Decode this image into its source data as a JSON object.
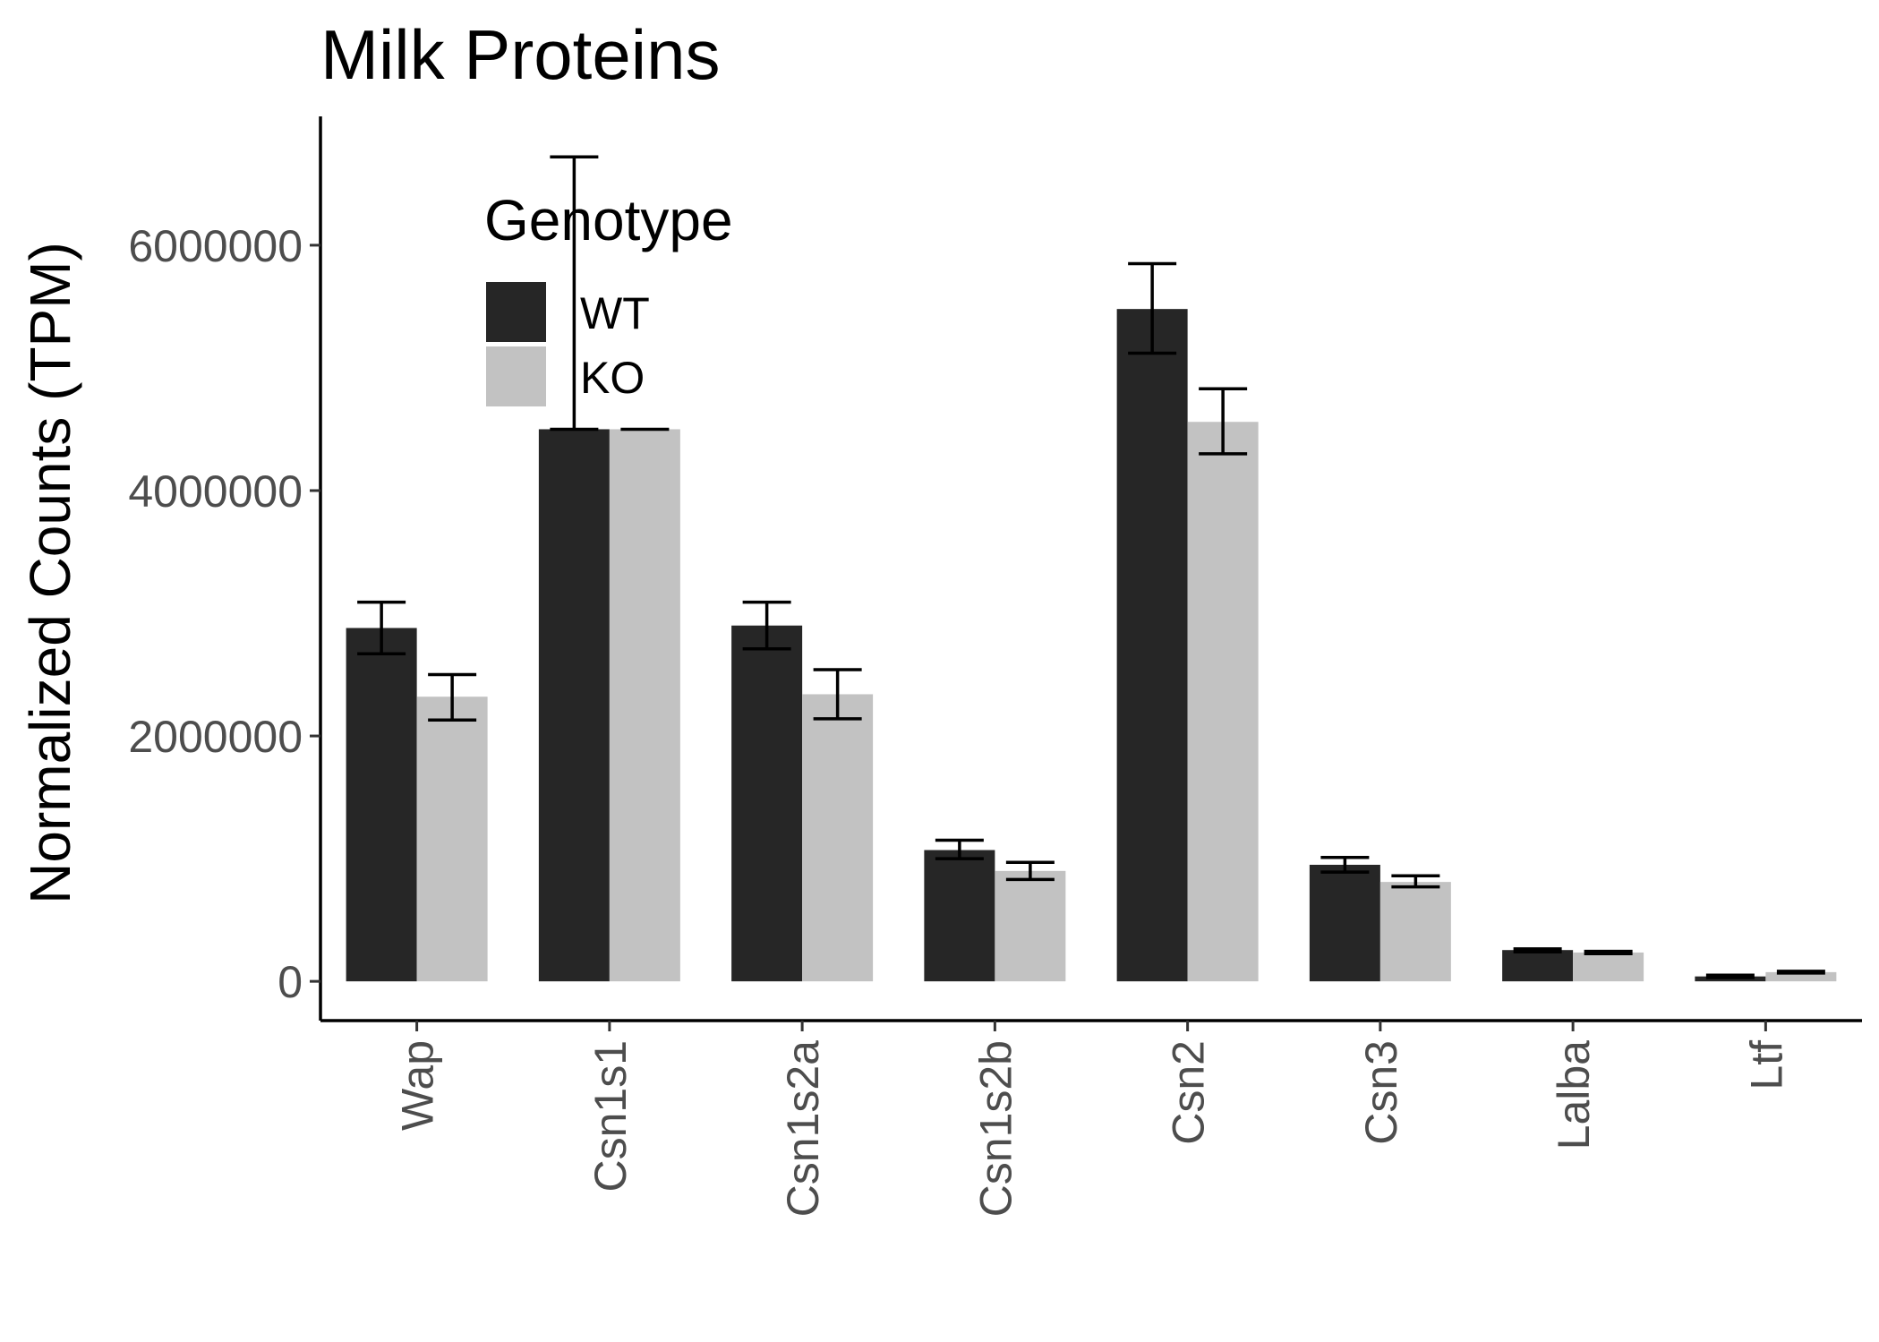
{
  "chart_data": {
    "type": "bar",
    "title": "Milk Proteins",
    "xlabel": "",
    "ylabel": "Normalized Counts (TPM)",
    "ylim": [
      -320000,
      7050000
    ],
    "yticks": [
      0,
      2000000,
      4000000,
      6000000
    ],
    "ytick_labels": [
      "0",
      "2000000",
      "4000000",
      "6000000"
    ],
    "categories": [
      "Wap",
      "Csn1s1",
      "Csn1s2a",
      "Csn1s2b",
      "Csn2",
      "Csn3",
      "Lalba",
      "Ltf"
    ],
    "legend": {
      "title": "Genotype",
      "position": "top-left"
    },
    "grid": false,
    "series": [
      {
        "name": "WT",
        "color": "#262626",
        "values": [
          2880000,
          4500000,
          2900000,
          1070000,
          5480000,
          950000,
          255000,
          40000
        ],
        "err_low": [
          2670000,
          4500000,
          2710000,
          1000000,
          5120000,
          890000,
          240000,
          30000
        ],
        "err_high": [
          3090000,
          6720000,
          3090000,
          1150000,
          5850000,
          1010000,
          265000,
          50000
        ]
      },
      {
        "name": "KO",
        "color": "#c2c2c2",
        "values": [
          2320000,
          4500000,
          2340000,
          900000,
          4560000,
          810000,
          235000,
          75000
        ],
        "err_low": [
          2130000,
          4500000,
          2140000,
          830000,
          4300000,
          770000,
          225000,
          68000
        ],
        "err_high": [
          2500000,
          4500000,
          2540000,
          970000,
          4830000,
          860000,
          245000,
          82000
        ]
      }
    ]
  }
}
